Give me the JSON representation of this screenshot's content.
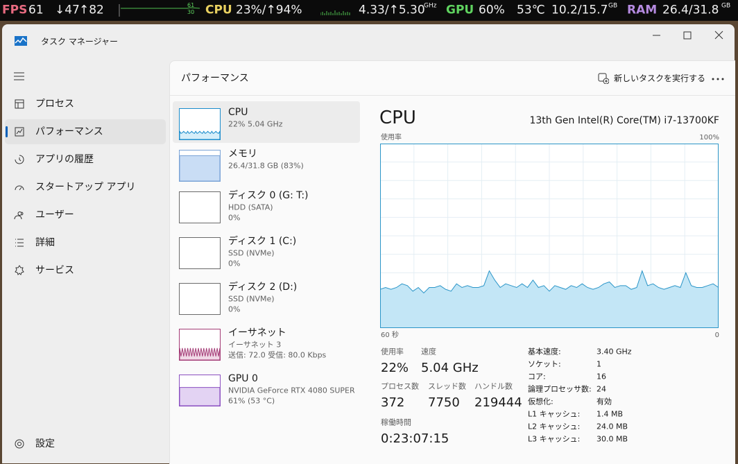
{
  "overlay": {
    "fps_label": "FPS",
    "fps": "61",
    "down": "↓47",
    "up": "↑82",
    "mini_top": "61",
    "mini_bottom": "30",
    "cpu_label": "CPU",
    "cpu_usage": "23%/↑94%",
    "cpu_clock": "4.33/↑5.30",
    "cpu_clock_unit": "GHz",
    "gpu_label": "GPU",
    "gpu_usage": "60%",
    "gpu_temp": "53℃",
    "vram": "10.2/15.7",
    "vram_unit": "GB",
    "ram_label": "RAM",
    "ram": "26.4/31.8",
    "ram_unit": "GB"
  },
  "window": {
    "title": "タスク マネージャー"
  },
  "nav": {
    "items": [
      "プロセス",
      "パフォーマンス",
      "アプリの履歴",
      "スタートアップ アプリ",
      "ユーザー",
      "詳細",
      "サービス"
    ],
    "settings": "設定"
  },
  "header": {
    "title": "パフォーマンス",
    "run_task": "新しいタスクを実行する"
  },
  "devices": [
    {
      "name": "CPU",
      "lines": [
        "22%  5.04 GHz"
      ]
    },
    {
      "name": "メモリ",
      "lines": [
        "26.4/31.8 GB (83%)"
      ]
    },
    {
      "name": "ディスク 0 (G: T:)",
      "lines": [
        "HDD (SATA)",
        "0%"
      ]
    },
    {
      "name": "ディスク 1 (C:)",
      "lines": [
        "SSD (NVMe)",
        "0%"
      ]
    },
    {
      "name": "ディスク 2 (D:)",
      "lines": [
        "SSD (NVMe)",
        "0%"
      ]
    },
    {
      "name": "イーサネット",
      "lines": [
        "イーサネット 3",
        "送信: 72.0 受信: 80.0 Kbps"
      ]
    },
    {
      "name": "GPU 0",
      "lines": [
        "NVIDIA GeForce RTX 4080 SUPER",
        "61% (53 °C)"
      ]
    }
  ],
  "cpu_panel": {
    "title": "CPU",
    "model": "13th Gen Intel(R) Core(TM) i7-13700KF",
    "y_label": "使用率",
    "y_max_label": "100%",
    "x_left_label": "60 秒",
    "x_right_label": "0",
    "graph": {
      "ylim": [
        0,
        100
      ],
      "values": [
        21,
        22,
        21,
        22,
        24,
        23,
        20,
        22,
        19,
        22,
        22,
        23,
        21,
        20,
        24,
        22,
        23,
        22,
        22,
        23,
        31,
        26,
        22,
        24,
        23,
        22,
        24,
        22,
        26,
        22,
        23,
        20,
        23,
        22,
        21,
        23,
        22,
        24,
        22,
        21,
        22,
        24,
        25,
        22,
        23,
        23,
        21,
        22,
        31,
        23,
        24,
        22,
        21,
        22,
        23,
        22,
        30,
        23,
        22,
        22,
        23,
        24,
        22
      ]
    },
    "stats": [
      {
        "label": "使用率",
        "value": "22%"
      },
      {
        "label": "速度",
        "value": "5.04 GHz"
      },
      {
        "label": "プロセス数",
        "value": "372"
      },
      {
        "label": "スレッド数",
        "value": "7750"
      },
      {
        "label": "ハンドル数",
        "value": "219444"
      },
      {
        "label": "稼働時間",
        "value": "0:23:07:15"
      }
    ],
    "specs": [
      {
        "label": "基本速度:",
        "value": "3.40 GHz"
      },
      {
        "label": "ソケット:",
        "value": "1"
      },
      {
        "label": "コア:",
        "value": "16"
      },
      {
        "label": "論理プロセッサ数:",
        "value": "24"
      },
      {
        "label": "仮想化:",
        "value": "有効"
      },
      {
        "label": "L1 キャッシュ:",
        "value": "1.4 MB"
      },
      {
        "label": "L2 キャッシュ:",
        "value": "24.0 MB"
      },
      {
        "label": "L3 キャッシュ:",
        "value": "30.0 MB"
      }
    ]
  }
}
